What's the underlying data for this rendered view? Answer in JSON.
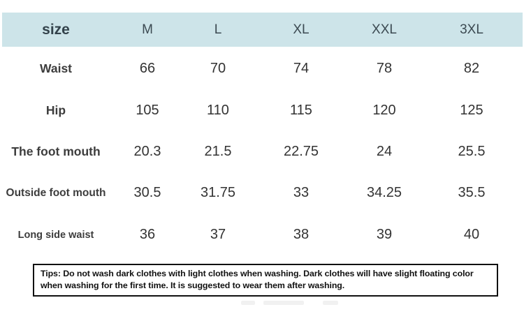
{
  "table": {
    "header": {
      "label": "size",
      "columns": [
        "M",
        "L",
        "XL",
        "XXL",
        "3XL"
      ]
    },
    "rows": [
      {
        "label": "Waist",
        "values": [
          "66",
          "70",
          "74",
          "78",
          "82"
        ]
      },
      {
        "label": "Hip",
        "values": [
          "105",
          "110",
          "115",
          "120",
          "125"
        ]
      },
      {
        "label": "The foot mouth",
        "values": [
          "20.3",
          "21.5",
          "22.75",
          "24",
          "25.5"
        ]
      },
      {
        "label": "Outside foot mouth",
        "values": [
          "30.5",
          "31.75",
          "33",
          "34.25",
          "35.5"
        ]
      },
      {
        "label": "Long side waist",
        "values": [
          "36",
          "37",
          "38",
          "39",
          "40"
        ]
      }
    ]
  },
  "tips": {
    "text": "Tips: Do not wash dark clothes with light clothes when washing. Dark clothes will have slight floating color when washing for the first time. It is suggested to wear them after washing."
  },
  "colors": {
    "header_bg": "#cde4e9",
    "header_text": "#3c4a52",
    "label_text": "#3d3d3d",
    "value_text": "#333333",
    "tips_border": "#111111"
  }
}
